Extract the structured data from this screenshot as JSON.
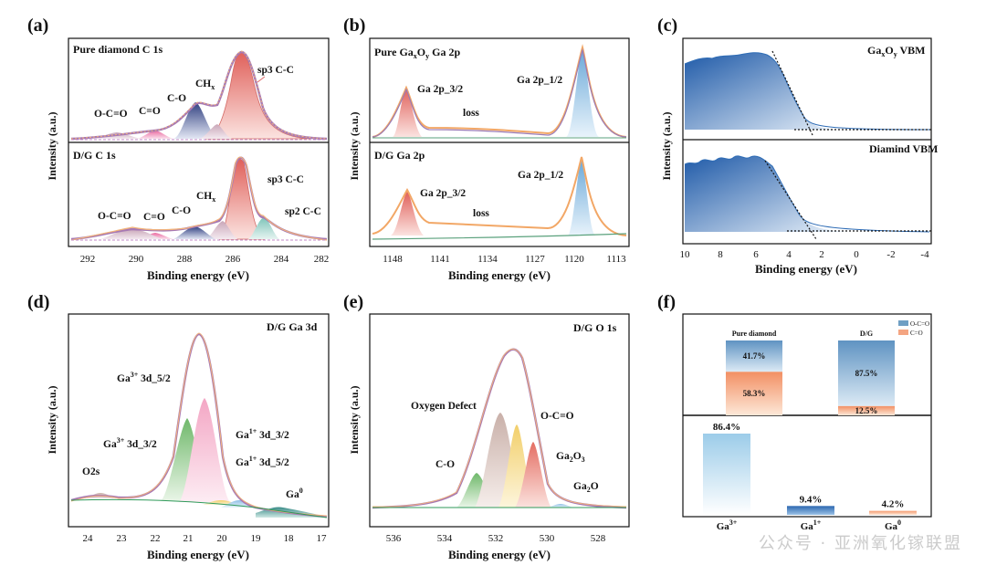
{
  "panels": {
    "a": {
      "label": "(a)",
      "top": {
        "title": "Pure diamond C 1s",
        "peaks": [
          "O-C=O",
          "C=O",
          "C-O",
          "CH",
          "sp3 C-C"
        ]
      },
      "bottom": {
        "title": "D/G C 1s",
        "peaks": [
          "O-C=O",
          "C=O",
          "C-O",
          "CH",
          "sp3 C-C",
          "sp2 C-C"
        ]
      },
      "subscript_x": "x",
      "xlabel": "Binding energy (eV)",
      "ylabel": "Intensity (a.u.)",
      "xticks": [
        "292",
        "290",
        "288",
        "286",
        "284",
        "282"
      ]
    },
    "b": {
      "label": "(b)",
      "top": {
        "title_main": "Pure Ga",
        "title_sub1": "x",
        "title_mid": "O",
        "title_sub2": "y",
        "title_end": " Ga 2p",
        "peaks": [
          "Ga 2p_3/2",
          "loss",
          "Ga 2p_1/2"
        ]
      },
      "bottom": {
        "title": "D/G Ga 2p",
        "peaks": [
          "Ga 2p_3/2",
          "loss",
          "Ga 2p_1/2"
        ]
      },
      "xlabel": "Binding energy (eV)",
      "ylabel": "Intensity (a.u.)",
      "xticks": [
        "1148",
        "1141",
        "1134",
        "1127",
        "1120",
        "1113"
      ]
    },
    "c": {
      "label": "(c)",
      "top": {
        "title_main": "Ga",
        "title_sub1": "x",
        "title_mid": "O",
        "title_sub2": "y",
        "title_end": " VBM"
      },
      "bottom": {
        "title": "Diamind VBM"
      },
      "xlabel": "Binding energy (eV)",
      "ylabel": "Intensity (a.u.)",
      "xticks": [
        "10",
        "8",
        "6",
        "4",
        "2",
        "0",
        "-2",
        "-4"
      ]
    },
    "d": {
      "label": "(d)",
      "title": "D/G Ga 3d",
      "peaks": {
        "o2s": "O2s",
        "ga3_32": {
          "base": "Ga",
          "sup": "3+",
          "rest": " 3d_3/2"
        },
        "ga3_52": {
          "base": "Ga",
          "sup": "3+",
          "rest": " 3d_5/2"
        },
        "ga1_32": {
          "base": "Ga",
          "sup": "1+",
          "rest": " 3d_3/2"
        },
        "ga1_52": {
          "base": "Ga",
          "sup": "1+",
          "rest": " 3d_5/2"
        },
        "ga0": {
          "base": "Ga",
          "sup": "0"
        }
      },
      "xlabel": "Binding energy (eV)",
      "ylabel": "Intensity (a.u.)",
      "xticks": [
        "24",
        "23",
        "22",
        "21",
        "20",
        "19",
        "18",
        "17"
      ]
    },
    "e": {
      "label": "(e)",
      "title": "D/G O 1s",
      "peaks": {
        "defect": "Oxygen Defect",
        "oco": "O-C=O",
        "co": "C-O",
        "ga2o3": {
          "a": "Ga",
          "s1": "2",
          "b": "O",
          "s2": "3"
        },
        "ga2o": {
          "a": "Ga",
          "s1": "2",
          "b": "O"
        }
      },
      "xlabel": "Binding energy (eV)",
      "ylabel": "Intensity (a.u.)",
      "xticks": [
        "536",
        "534",
        "532",
        "530",
        "528"
      ]
    },
    "f": {
      "label": "(f)",
      "legend": [
        "O-C=O",
        "C=O"
      ]
    }
  },
  "chart_data": [
    {
      "type": "bar",
      "title": "",
      "categories": [
        "Pure diamond",
        "D/G"
      ],
      "series": [
        {
          "name": "O-C=O",
          "values": [
            41.7,
            87.5
          ]
        },
        {
          "name": "C=O",
          "values": [
            58.3,
            12.5
          ]
        }
      ],
      "data_labels": [
        [
          "41.7%",
          "58.3%"
        ],
        [
          "87.5%",
          "12.5%"
        ]
      ],
      "stacked": true,
      "ylim": [
        0,
        100
      ],
      "colors": {
        "O-C=O": "#6f9fc4",
        "C=O": "#f4a582"
      }
    },
    {
      "type": "bar",
      "title": "",
      "categories": [
        "Ga3+",
        "Ga1+",
        "Ga0"
      ],
      "category_display": [
        {
          "base": "Ga",
          "sup": "3+"
        },
        {
          "base": "Ga",
          "sup": "1+"
        },
        {
          "base": "Ga",
          "sup": "0"
        }
      ],
      "values": [
        86.4,
        9.4,
        4.2
      ],
      "data_labels": [
        "86.4%",
        "9.4%",
        "4.2%"
      ],
      "ylim": [
        0,
        100
      ],
      "colors": [
        "#a9d2ea",
        "#2f6db6",
        "#f4a582"
      ]
    }
  ],
  "watermark": "公众号 · 亚洲氧化镓联盟"
}
